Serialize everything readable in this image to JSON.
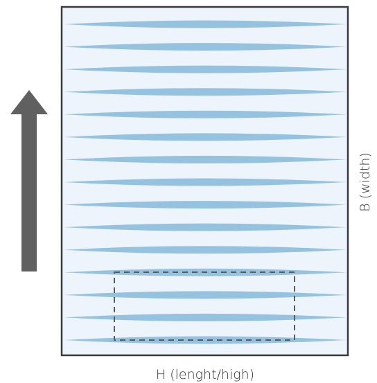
{
  "diagram": {
    "width_label": "B (width)",
    "length_label": "H (lenght/high)",
    "stripe_count": 15,
    "colors": {
      "panel_fill": "#eef4fc",
      "panel_border": "#3a3a3a",
      "stripe": "#94c2df",
      "arrow": "#606060",
      "dashed_box": "#5a5a5a"
    },
    "icons": {
      "direction_arrow": "up-arrow-icon"
    }
  }
}
